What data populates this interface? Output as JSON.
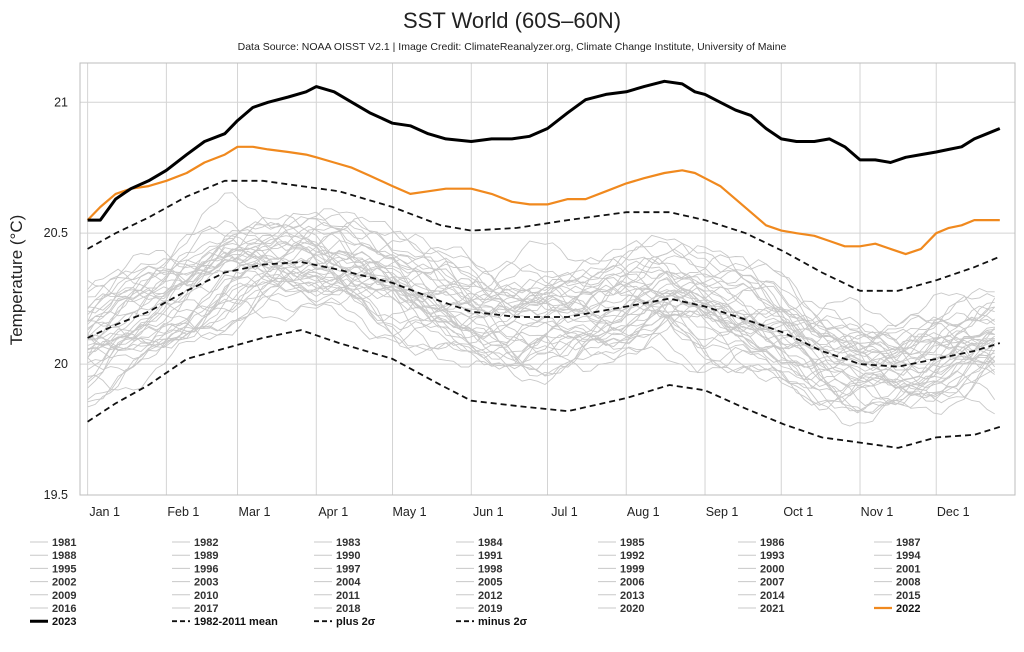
{
  "chart_data": {
    "type": "line",
    "title": "SST World (60S–60N)",
    "subtitle": "Data Source: NOAA OISST V2.1 | Image Credit: ClimateReanalyzer.org, Climate Change Institute, University of Maine",
    "ylabel": "Temperature (°C)",
    "ylim": [
      19.5,
      21.15
    ],
    "yticks": [
      "19.5",
      "20",
      "20.5",
      "21"
    ],
    "ytick_values": [
      19.5,
      20,
      20.5,
      21
    ],
    "xticks": [
      "Jan 1",
      "Feb 1",
      "Mar 1",
      "Apr 1",
      "May 1",
      "Jun 1",
      "Jul 1",
      "Aug 1",
      "Sep 1",
      "Oct 1",
      "Nov 1",
      "Dec 1"
    ],
    "xtick_days": [
      1,
      32,
      60,
      91,
      121,
      152,
      182,
      213,
      244,
      274,
      305,
      335
    ],
    "xlim": [
      -2,
      366
    ],
    "grid": true,
    "legend_position": "bottom",
    "background_years": [
      "1981",
      "1982",
      "1983",
      "1984",
      "1985",
      "1986",
      "1987",
      "1988",
      "1989",
      "1990",
      "1991",
      "1992",
      "1993",
      "1994",
      "1995",
      "1996",
      "1997",
      "1998",
      "1999",
      "2000",
      "2001",
      "2002",
      "2003",
      "2004",
      "2005",
      "2006",
      "2007",
      "2008",
      "2009",
      "2010",
      "2011",
      "2012",
      "2013",
      "2014",
      "2015",
      "2016",
      "2017",
      "2018",
      "2019",
      "2020",
      "2021"
    ],
    "background_color": "#c8c8c8",
    "series": [
      {
        "name": "2023",
        "color": "#000000",
        "style": "solid",
        "x": [
          1,
          6,
          12,
          18,
          25,
          32,
          40,
          47,
          55,
          60,
          66,
          72,
          80,
          87,
          91,
          98,
          105,
          112,
          121,
          128,
          135,
          142,
          152,
          160,
          168,
          175,
          182,
          190,
          197,
          205,
          213,
          220,
          228,
          235,
          240,
          244,
          250,
          256,
          262,
          268,
          274,
          280,
          287,
          293,
          299,
          305,
          311,
          317,
          323,
          329,
          335,
          340,
          345,
          350,
          355,
          360
        ],
        "y": [
          20.55,
          20.55,
          20.63,
          20.67,
          20.7,
          20.74,
          20.8,
          20.85,
          20.88,
          20.93,
          20.98,
          21.0,
          21.02,
          21.04,
          21.06,
          21.04,
          21.0,
          20.96,
          20.92,
          20.91,
          20.88,
          20.86,
          20.85,
          20.86,
          20.86,
          20.87,
          20.9,
          20.96,
          21.01,
          21.03,
          21.04,
          21.06,
          21.08,
          21.07,
          21.04,
          21.03,
          21.0,
          20.97,
          20.95,
          20.9,
          20.86,
          20.85,
          20.85,
          20.86,
          20.83,
          20.78,
          20.78,
          20.77,
          20.79,
          20.8,
          20.81,
          20.82,
          20.83,
          20.86,
          20.88,
          20.9
        ]
      },
      {
        "name": "2022",
        "color": "#f0891e",
        "style": "solid",
        "x": [
          1,
          6,
          12,
          18,
          25,
          32,
          40,
          47,
          55,
          60,
          66,
          72,
          80,
          87,
          91,
          98,
          105,
          112,
          121,
          128,
          135,
          142,
          152,
          160,
          168,
          175,
          182,
          190,
          197,
          205,
          213,
          220,
          228,
          235,
          240,
          244,
          250,
          256,
          262,
          268,
          274,
          280,
          287,
          293,
          299,
          305,
          311,
          317,
          323,
          329,
          335,
          340,
          345,
          350,
          355,
          360
        ],
        "y": [
          20.55,
          20.6,
          20.65,
          20.67,
          20.68,
          20.7,
          20.73,
          20.77,
          20.8,
          20.83,
          20.83,
          20.82,
          20.81,
          20.8,
          20.79,
          20.77,
          20.75,
          20.72,
          20.68,
          20.65,
          20.66,
          20.67,
          20.67,
          20.65,
          20.62,
          20.61,
          20.61,
          20.63,
          20.63,
          20.66,
          20.69,
          20.71,
          20.73,
          20.74,
          20.73,
          20.71,
          20.68,
          20.63,
          20.58,
          20.53,
          20.51,
          20.5,
          20.49,
          20.47,
          20.45,
          20.45,
          20.46,
          20.44,
          20.42,
          20.44,
          20.5,
          20.52,
          20.53,
          20.55,
          20.55,
          20.55
        ]
      },
      {
        "name": "1982-2011 mean",
        "color": "#111111",
        "style": "dashed",
        "x": [
          1,
          12,
          25,
          40,
          55,
          70,
          85,
          100,
          121,
          140,
          152,
          170,
          190,
          213,
          230,
          244,
          260,
          275,
          290,
          305,
          320,
          335,
          350,
          360
        ],
        "y": [
          20.1,
          20.15,
          20.2,
          20.28,
          20.35,
          20.38,
          20.39,
          20.36,
          20.31,
          20.24,
          20.2,
          20.18,
          20.18,
          20.22,
          20.25,
          20.22,
          20.17,
          20.12,
          20.05,
          20.0,
          19.99,
          20.02,
          20.05,
          20.08
        ]
      },
      {
        "name": "plus 2σ",
        "color": "#111111",
        "style": "dashed",
        "x": [
          1,
          12,
          25,
          40,
          55,
          70,
          85,
          100,
          121,
          140,
          152,
          170,
          190,
          213,
          230,
          244,
          260,
          275,
          290,
          305,
          320,
          335,
          350,
          360
        ],
        "y": [
          20.44,
          20.5,
          20.56,
          20.64,
          20.7,
          20.7,
          20.68,
          20.66,
          20.6,
          20.53,
          20.51,
          20.52,
          20.55,
          20.58,
          20.58,
          20.55,
          20.5,
          20.43,
          20.35,
          20.28,
          20.28,
          20.32,
          20.37,
          20.41
        ]
      },
      {
        "name": "minus 2σ",
        "color": "#111111",
        "style": "dashed",
        "x": [
          1,
          12,
          25,
          40,
          55,
          70,
          85,
          100,
          121,
          140,
          152,
          170,
          190,
          213,
          230,
          244,
          260,
          275,
          290,
          305,
          320,
          335,
          350,
          360
        ],
        "y": [
          19.78,
          19.85,
          19.92,
          20.02,
          20.06,
          20.1,
          20.13,
          20.08,
          20.02,
          19.92,
          19.86,
          19.84,
          19.82,
          19.87,
          19.92,
          19.9,
          19.83,
          19.77,
          19.72,
          19.7,
          19.68,
          19.72,
          19.73,
          19.76
        ]
      }
    ]
  },
  "legend": {
    "columns": 7,
    "items": [
      "1981",
      "1982",
      "1983",
      "1984",
      "1985",
      "1986",
      "1987",
      "1988",
      "1989",
      "1990",
      "1991",
      "1992",
      "1993",
      "1994",
      "1995",
      "1996",
      "1997",
      "1998",
      "1999",
      "2000",
      "2001",
      "2002",
      "2003",
      "2004",
      "2005",
      "2006",
      "2007",
      "2008",
      "2009",
      "2010",
      "2011",
      "2012",
      "2013",
      "2014",
      "2015",
      "2016",
      "2017",
      "2018",
      "2019",
      "2020",
      "2021",
      "2022",
      "2023",
      "1982-2011 mean",
      "plus 2σ",
      "minus 2σ"
    ]
  }
}
